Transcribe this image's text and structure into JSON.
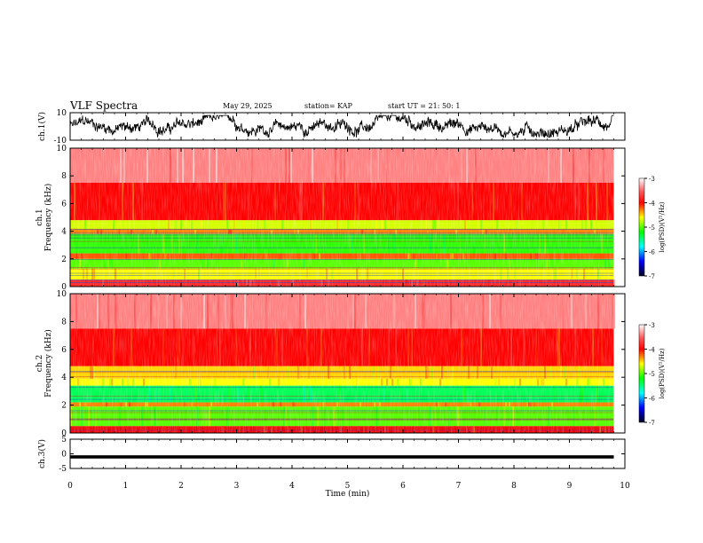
{
  "header": {
    "title": "VLF Spectra",
    "date": "May 29, 2025",
    "station": "station= KAP",
    "start": "start  UT  =   21: 50: 1"
  },
  "colorbar": {
    "label": "log(PSD)(V²/Hz)",
    "ticks": [
      "-3",
      "-4",
      "-5",
      "-6",
      "-7"
    ],
    "colors": [
      "#ffffff",
      "#ff3030",
      "#ff0000",
      "#ffff00",
      "#00ff00",
      "#00ffff",
      "#0000ff",
      "#000033"
    ]
  },
  "chart_data": [
    {
      "type": "line",
      "name": "ch1-waveform",
      "ylabel": "ch.1(V)",
      "ylim": [
        -10,
        10
      ],
      "yticks": [
        "10",
        "-10"
      ],
      "x_range_min": [
        0,
        9.8
      ],
      "description_values": "noisy waveform oscillating roughly between -5 and 5 V"
    },
    {
      "type": "heatmap",
      "name": "ch1-spectrogram",
      "ylabel_top": "ch.1",
      "ylabel": "Frequency (kHz)",
      "ylim": [
        0,
        10
      ],
      "yticks": [
        "0",
        "2",
        "4",
        "6",
        "8",
        "10"
      ],
      "x_range_min": [
        0,
        9.8
      ],
      "bands": [
        {
          "from_khz": 0,
          "to_khz": 0.5,
          "level": -3.8
        },
        {
          "from_khz": 0.5,
          "to_khz": 1.3,
          "level": -4.6
        },
        {
          "from_khz": 1.3,
          "to_khz": 2.0,
          "level": -5.0
        },
        {
          "from_khz": 2.0,
          "to_khz": 2.4,
          "level": -4.2
        },
        {
          "from_khz": 2.4,
          "to_khz": 3.8,
          "level": -5.1
        },
        {
          "from_khz": 3.8,
          "to_khz": 4.1,
          "level": -4.3
        },
        {
          "from_khz": 4.1,
          "to_khz": 4.8,
          "level": -4.7
        },
        {
          "from_khz": 4.8,
          "to_khz": 7.5,
          "level": -4.0
        },
        {
          "from_khz": 7.5,
          "to_khz": 10,
          "level": -3.4
        }
      ]
    },
    {
      "type": "heatmap",
      "name": "ch2-spectrogram",
      "ylabel_top": "ch.2",
      "ylabel": "Frequency (kHz)",
      "ylim": [
        0,
        10
      ],
      "yticks": [
        "0",
        "2",
        "4",
        "6",
        "8",
        "10"
      ],
      "x_range_min": [
        0,
        9.8
      ],
      "bands": [
        {
          "from_khz": 0,
          "to_khz": 0.5,
          "level": -4.0
        },
        {
          "from_khz": 0.5,
          "to_khz": 1.9,
          "level": -5.0
        },
        {
          "from_khz": 1.9,
          "to_khz": 2.2,
          "level": -4.3
        },
        {
          "from_khz": 2.2,
          "to_khz": 3.4,
          "level": -5.4
        },
        {
          "from_khz": 3.4,
          "to_khz": 3.9,
          "level": -4.6
        },
        {
          "from_khz": 3.9,
          "to_khz": 4.8,
          "level": -4.5
        },
        {
          "from_khz": 4.8,
          "to_khz": 7.5,
          "level": -4.0
        },
        {
          "from_khz": 7.5,
          "to_khz": 10,
          "level": -3.4
        }
      ]
    },
    {
      "type": "line",
      "name": "ch3-waveform",
      "ylabel": "ch.3(V)",
      "ylim": [
        -5,
        5
      ],
      "yticks": [
        "5",
        "0",
        "-5"
      ],
      "x_range_min": [
        0,
        9.8
      ],
      "description_values": "constant thick trace near -1 V"
    }
  ],
  "xaxis": {
    "label": "Time (min)",
    "ticks": [
      "0",
      "1",
      "2",
      "3",
      "4",
      "5",
      "6",
      "7",
      "8",
      "9",
      "10"
    ],
    "xlim": [
      0,
      10
    ]
  }
}
